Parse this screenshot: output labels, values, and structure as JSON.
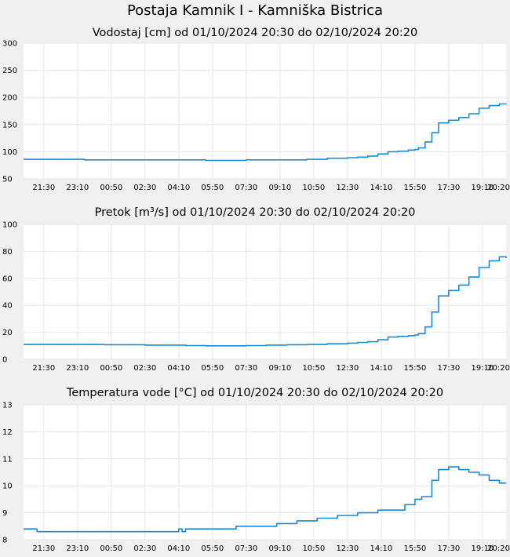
{
  "page_title": "Postaja Kamnik I - Kamniška Bistrica",
  "colors": {
    "line": "#1a8ad4",
    "background": "#f0f0f0",
    "plot": "#ffffff",
    "grid": "#e6e6e6"
  },
  "chart_data": [
    {
      "type": "line",
      "title": "Vodostaj [cm] od 01/10/2024 20:30 do 02/10/2024 20:20",
      "xlabel": "",
      "ylabel": "",
      "ylim": [
        50,
        300
      ],
      "yticks": [
        "300",
        "250",
        "200",
        "150",
        "100",
        "50"
      ],
      "xticks": [
        "21:30",
        "23:10",
        "00:50",
        "02:30",
        "04:10",
        "05:50",
        "07:30",
        "09:10",
        "10:50",
        "12:30",
        "14:10",
        "15:50",
        "17:30",
        "19:10",
        "20:20"
      ],
      "grid": true,
      "series": [
        {
          "x": [
            "20:30",
            "21:30",
            "22:30",
            "23:30",
            "00:30",
            "01:30",
            "02:30",
            "03:30",
            "04:30",
            "05:30",
            "06:30",
            "07:30",
            "08:30",
            "09:30",
            "10:30",
            "11:30",
            "12:30",
            "13:00",
            "13:30",
            "14:00",
            "14:30",
            "15:00",
            "15:30",
            "15:50",
            "16:00",
            "16:20",
            "16:40",
            "17:00",
            "17:30",
            "18:00",
            "18:30",
            "19:00",
            "19:30",
            "20:00",
            "20:20"
          ],
          "values": [
            86,
            86,
            86,
            85,
            85,
            85,
            85,
            85,
            85,
            84,
            84,
            85,
            85,
            85,
            86,
            88,
            89,
            90,
            92,
            96,
            100,
            101,
            103,
            104,
            107,
            118,
            135,
            153,
            158,
            163,
            170,
            180,
            185,
            188,
            187
          ]
        }
      ]
    },
    {
      "type": "line",
      "title": "Pretok [m³/s] od 01/10/2024 20:30 do 02/10/2024 20:20",
      "xlabel": "",
      "ylabel": "",
      "ylim": [
        0,
        100
      ],
      "yticks": [
        "100",
        "80",
        "60",
        "40",
        "20",
        "0"
      ],
      "xticks": [
        "21:30",
        "23:10",
        "00:50",
        "02:30",
        "04:10",
        "05:50",
        "07:30",
        "09:10",
        "10:50",
        "12:30",
        "14:10",
        "15:50",
        "17:30",
        "19:10",
        "20:20"
      ],
      "grid": true,
      "series": [
        {
          "x": [
            "20:30",
            "21:30",
            "22:30",
            "23:30",
            "00:30",
            "01:30",
            "02:30",
            "03:30",
            "04:30",
            "05:30",
            "06:30",
            "07:30",
            "08:30",
            "09:30",
            "10:30",
            "11:30",
            "12:30",
            "13:00",
            "13:30",
            "14:00",
            "14:30",
            "15:00",
            "15:30",
            "15:50",
            "16:00",
            "16:20",
            "16:40",
            "17:00",
            "17:30",
            "18:00",
            "18:30",
            "19:00",
            "19:30",
            "20:00",
            "20:20"
          ],
          "values": [
            11,
            11,
            11,
            11,
            10.8,
            10.8,
            10.5,
            10.5,
            10.2,
            10,
            10,
            10.2,
            10.5,
            10.8,
            11,
            11.5,
            12,
            12.5,
            13,
            14.5,
            16.5,
            17,
            17.5,
            18,
            19,
            24,
            35,
            47,
            51,
            55,
            61,
            68,
            73,
            76,
            75
          ]
        }
      ]
    },
    {
      "type": "line",
      "title": "Temperatura vode [°C] od 01/10/2024 20:30 do 02/10/2024 20:20",
      "xlabel": "",
      "ylabel": "",
      "ylim": [
        8,
        13
      ],
      "yticks": [
        "13",
        "12",
        "11",
        "10",
        "9",
        "8"
      ],
      "xticks": [
        "21:30",
        "23:10",
        "00:50",
        "02:30",
        "04:10",
        "05:50",
        "07:30",
        "09:10",
        "10:50",
        "12:30",
        "14:10",
        "15:50",
        "17:30",
        "19:10",
        "20:20"
      ],
      "grid": true,
      "series": [
        {
          "x": [
            "20:30",
            "21:00",
            "21:10",
            "22:00",
            "23:30",
            "01:00",
            "02:30",
            "04:00",
            "04:10",
            "04:20",
            "04:30",
            "05:00",
            "06:00",
            "07:00",
            "07:30",
            "08:30",
            "09:00",
            "09:30",
            "10:00",
            "11:00",
            "11:30",
            "12:00",
            "13:00",
            "14:00",
            "14:30",
            "15:00",
            "15:20",
            "15:50",
            "16:10",
            "16:40",
            "17:00",
            "17:30",
            "18:00",
            "18:30",
            "19:00",
            "19:30",
            "20:00",
            "20:20"
          ],
          "values": [
            8.4,
            8.4,
            8.3,
            8.3,
            8.3,
            8.3,
            8.3,
            8.3,
            8.4,
            8.3,
            8.4,
            8.4,
            8.4,
            8.5,
            8.5,
            8.5,
            8.6,
            8.6,
            8.7,
            8.8,
            8.8,
            8.9,
            9.0,
            9.1,
            9.1,
            9.1,
            9.3,
            9.5,
            9.6,
            10.2,
            10.6,
            10.7,
            10.6,
            10.5,
            10.4,
            10.2,
            10.1,
            10.1
          ]
        }
      ]
    }
  ]
}
